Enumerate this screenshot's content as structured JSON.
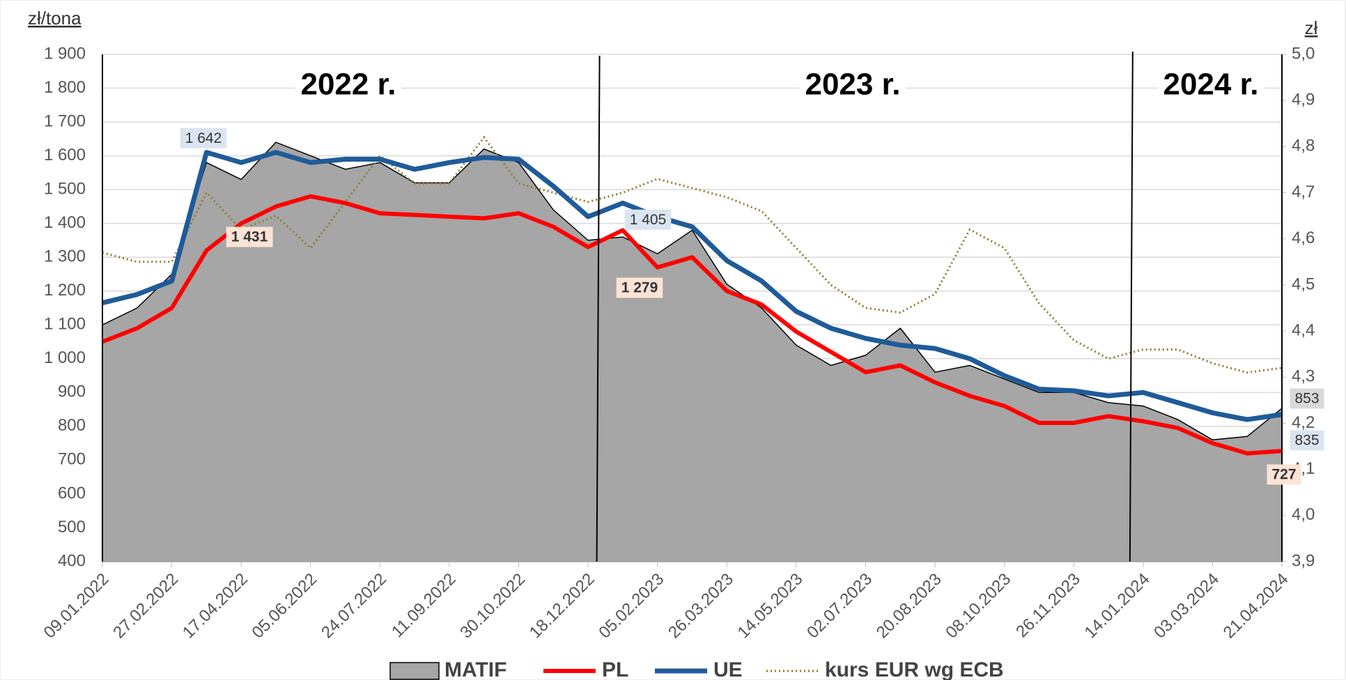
{
  "chart_data": {
    "type": "line",
    "y_label": "zł/tona",
    "y2_label": "zł",
    "categories": [
      "09.01.2022",
      null,
      "27.02.2022",
      null,
      "17.04.2022",
      null,
      "05.06.2022",
      null,
      "24.07.2022",
      null,
      "11.09.2022",
      null,
      "30.10.2022",
      null,
      "18.12.2022",
      null,
      "05.02.2023",
      null,
      "26.03.2023",
      null,
      "14.05.2023",
      null,
      "02.07.2023",
      null,
      "20.08.2023",
      null,
      "08.10.2023",
      null,
      "26.11.2023",
      null,
      "14.01.2024",
      null,
      "03.03.2024",
      null,
      "21.04.2024"
    ],
    "series": [
      {
        "name": "MATIF",
        "kind": "area",
        "color": "#a6a6a6",
        "values": [
          1100,
          1150,
          1250,
          1580,
          1530,
          1640,
          1600,
          1560,
          1580,
          1520,
          1520,
          1620,
          1580,
          1440,
          1350,
          1360,
          1310,
          1380,
          1220,
          1150,
          1040,
          980,
          1010,
          1090,
          960,
          980,
          940,
          900,
          900,
          870,
          860,
          820,
          760,
          770,
          853
        ]
      },
      {
        "name": "PL",
        "kind": "line",
        "color": "#ff0000",
        "values": [
          1050,
          1090,
          1150,
          1320,
          1400,
          1450,
          1480,
          1460,
          1430,
          1425,
          1420,
          1415,
          1430,
          1390,
          1330,
          1380,
          1270,
          1300,
          1200,
          1160,
          1080,
          1020,
          960,
          980,
          930,
          890,
          860,
          810,
          810,
          830,
          815,
          795,
          750,
          720,
          727
        ]
      },
      {
        "name": "UE",
        "kind": "line",
        "color": "#1f5b99",
        "values": [
          1165,
          1190,
          1230,
          1610,
          1580,
          1610,
          1580,
          1590,
          1590,
          1560,
          1580,
          1595,
          1590,
          1510,
          1420,
          1460,
          1420,
          1390,
          1290,
          1230,
          1140,
          1090,
          1060,
          1040,
          1030,
          1000,
          950,
          910,
          905,
          890,
          900,
          870,
          840,
          820,
          835
        ]
      },
      {
        "name": "kurs EUR wg ECB",
        "kind": "dotted",
        "axis": "y2",
        "color": "#8b7a2a",
        "values": [
          4.57,
          4.55,
          4.55,
          4.7,
          4.62,
          4.65,
          4.58,
          4.68,
          4.78,
          4.72,
          4.72,
          4.82,
          4.72,
          4.7,
          4.68,
          4.7,
          4.73,
          4.71,
          4.69,
          4.66,
          4.58,
          4.5,
          4.45,
          4.44,
          4.48,
          4.62,
          4.58,
          4.46,
          4.38,
          4.34,
          4.36,
          4.36,
          4.33,
          4.31,
          4.32
        ]
      }
    ],
    "ylim": [
      400,
      1900
    ],
    "yticks": [
      400,
      500,
      600,
      700,
      800,
      900,
      {
        "value": 1000,
        "label": "1 000"
      },
      {
        "value": 1100,
        "label": "1 100"
      },
      {
        "value": 1200,
        "label": "1 200"
      },
      {
        "value": 1300,
        "label": "1 300"
      },
      {
        "value": 1400,
        "label": "1 400"
      },
      {
        "value": 1500,
        "label": "1 500"
      },
      {
        "value": 1600,
        "label": "1 600"
      },
      {
        "value": 1700,
        "label": "1 700"
      },
      {
        "value": 1800,
        "label": "1 800"
      },
      {
        "value": 1900,
        "label": "1 900"
      }
    ],
    "y2lim": [
      3.9,
      5.0
    ],
    "y2ticks": [
      {
        "value": 3.9,
        "label": "3,9"
      },
      {
        "value": 4.0,
        "label": "4,0"
      },
      {
        "value": 4.1,
        "label": "4,1"
      },
      {
        "value": 4.2,
        "label": "4,2"
      },
      {
        "value": 4.3,
        "label": "4,3"
      },
      {
        "value": 4.4,
        "label": "4,4"
      },
      {
        "value": 4.5,
        "label": "4,5"
      },
      {
        "value": 4.6,
        "label": "4,6"
      },
      {
        "value": 4.7,
        "label": "4,7"
      },
      {
        "value": 4.8,
        "label": "4,8"
      },
      {
        "value": 4.9,
        "label": "4,9"
      },
      {
        "value": 5.0,
        "label": "5,0"
      }
    ],
    "grid": true,
    "periods": [
      "2022 r.",
      "2023 r.",
      "2024 r."
    ],
    "annotations": [
      {
        "label": "1 642",
        "value": 1642,
        "series": "UE"
      },
      {
        "label": "1 431",
        "value": 1431,
        "series": "PL"
      },
      {
        "label": "1 405",
        "value": 1405,
        "series": "UE"
      },
      {
        "label": "1 279",
        "value": 1279,
        "series": "PL"
      },
      {
        "label": "853",
        "value": 853,
        "series": "MATIF"
      },
      {
        "label": "835",
        "value": 835,
        "series": "UE"
      },
      {
        "label": "727",
        "value": 727,
        "series": "PL"
      }
    ]
  }
}
